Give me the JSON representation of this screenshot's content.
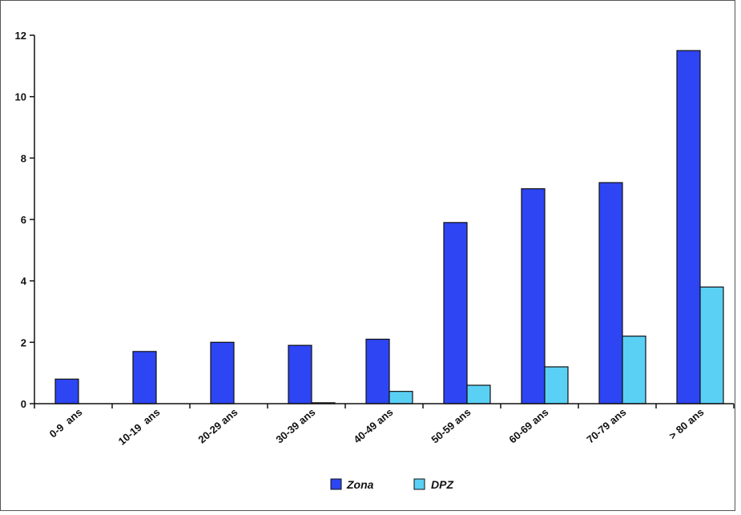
{
  "chart_data": {
    "type": "bar",
    "categories": [
      "0-9  ans",
      "10-19  ans",
      "20-29 ans",
      "30-39 ans",
      "40-49 ans",
      "50-59 ans",
      "60-69 ans",
      "70-79 ans",
      "> 80 ans"
    ],
    "series": [
      {
        "name": "Zona",
        "color": "#2d45f2",
        "values": [
          0.8,
          1.7,
          2.0,
          1.9,
          2.1,
          5.9,
          7.0,
          7.2,
          11.5
        ]
      },
      {
        "name": "DPZ",
        "color": "#5ad0f5",
        "values": [
          0,
          0,
          0,
          0.03,
          0.4,
          0.6,
          1.2,
          2.2,
          3.8
        ]
      }
    ],
    "title": "",
    "xlabel": "",
    "ylabel": "",
    "ylim": [
      0,
      12
    ],
    "yticks": [
      "0",
      "2",
      "4",
      "6",
      "8",
      "10",
      "12"
    ],
    "grid": false,
    "legend_position": "bottom"
  }
}
